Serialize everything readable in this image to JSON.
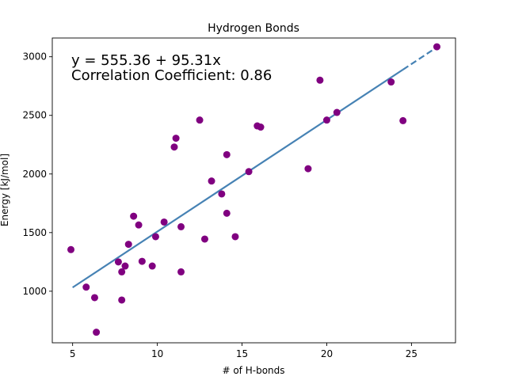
{
  "chart_data": {
    "type": "scatter",
    "title": "Hydrogen Bonds",
    "xlabel": "# of H-bonds",
    "ylabel": "Energy [kJ/mol]",
    "xlim": [
      3.8,
      27.6
    ],
    "ylim": [
      560,
      3160
    ],
    "xticks": [
      5,
      10,
      15,
      20,
      25
    ],
    "yticks": [
      1000,
      1500,
      2000,
      2500,
      3000
    ],
    "grid": false,
    "annotation_equation": "y = 555.36 + 95.31x",
    "annotation_correlation": "Correlation Coefficient: 0.86",
    "point_color": "#800080",
    "line_color": "#4682b4",
    "fit": {
      "intercept": 555.36,
      "slope": 95.31,
      "x_start": 5.0,
      "x_end": 26.5
    },
    "points": [
      {
        "x": 4.9,
        "y": 1355
      },
      {
        "x": 5.8,
        "y": 1035
      },
      {
        "x": 6.3,
        "y": 945
      },
      {
        "x": 6.4,
        "y": 650
      },
      {
        "x": 7.7,
        "y": 1250
      },
      {
        "x": 7.9,
        "y": 1165
      },
      {
        "x": 7.9,
        "y": 925
      },
      {
        "x": 8.1,
        "y": 1215
      },
      {
        "x": 8.3,
        "y": 1400
      },
      {
        "x": 8.6,
        "y": 1640
      },
      {
        "x": 8.9,
        "y": 1565
      },
      {
        "x": 9.1,
        "y": 1255
      },
      {
        "x": 9.7,
        "y": 1215
      },
      {
        "x": 9.9,
        "y": 1465
      },
      {
        "x": 10.4,
        "y": 1590
      },
      {
        "x": 11.0,
        "y": 2230
      },
      {
        "x": 11.1,
        "y": 2305
      },
      {
        "x": 11.4,
        "y": 1550
      },
      {
        "x": 11.4,
        "y": 1165
      },
      {
        "x": 12.5,
        "y": 2460
      },
      {
        "x": 12.8,
        "y": 1445
      },
      {
        "x": 13.2,
        "y": 1940
      },
      {
        "x": 13.8,
        "y": 1830
      },
      {
        "x": 14.1,
        "y": 2165
      },
      {
        "x": 14.1,
        "y": 1665
      },
      {
        "x": 14.6,
        "y": 1465
      },
      {
        "x": 15.4,
        "y": 2020
      },
      {
        "x": 15.9,
        "y": 2410
      },
      {
        "x": 16.1,
        "y": 2400
      },
      {
        "x": 18.9,
        "y": 2045
      },
      {
        "x": 19.6,
        "y": 2800
      },
      {
        "x": 20.0,
        "y": 2460
      },
      {
        "x": 20.6,
        "y": 2525
      },
      {
        "x": 23.8,
        "y": 2785
      },
      {
        "x": 24.5,
        "y": 2455
      },
      {
        "x": 26.5,
        "y": 3085
      }
    ]
  }
}
